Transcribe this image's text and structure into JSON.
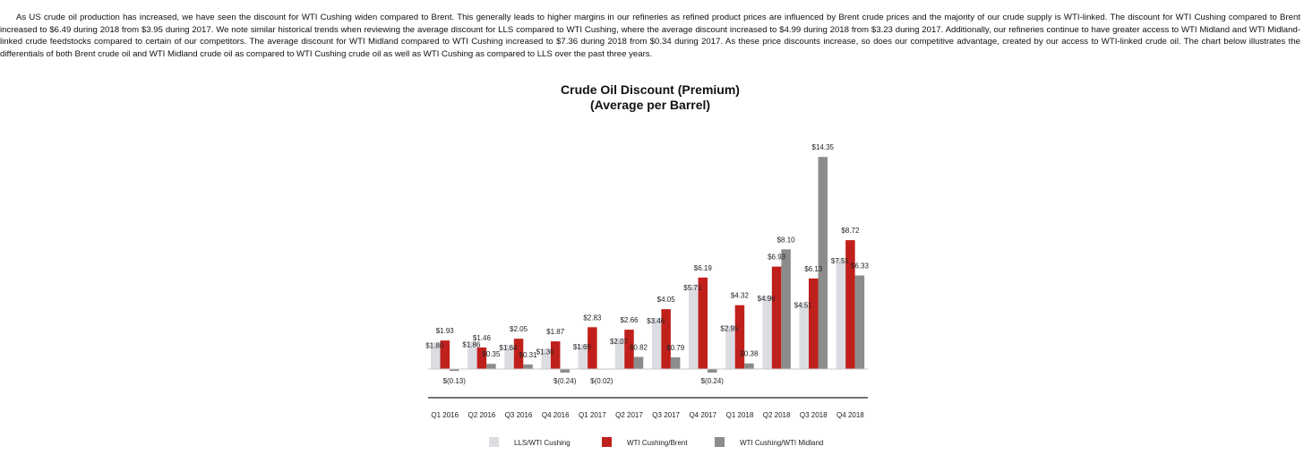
{
  "paragraph": "As US crude oil production has increased, we have seen the discount for WTI Cushing widen compared to Brent. This generally leads to higher margins in our refineries as refined product prices are influenced by Brent crude prices and the majority of our crude supply is WTI-linked. The discount for WTI Cushing compared to Brent increased to $6.49 during 2018 from $3.95 during 2017. We note similar historical trends when reviewing the average discount for LLS compared to WTI Cushing, where the average discount increased to $4.99 during 2018 from $3.23 during 2017. Additionally, our refineries continue to have greater access to WTI Midland and WTI Midland-linked crude feedstocks compared to certain of our competitors. The average discount for WTI Midland compared to WTI Cushing increased to $7.36 during 2018 from $0.34 during 2017. As these price discounts increase, so does our competitive advantage, created by our access to WTI-linked crude oil. The chart below illustrates the differentials of both Brent crude oil and WTI Midland crude oil as compared to WTI Cushing crude oil as well as WTI Cushing as compared to LLS over the past three years.",
  "chart_data": {
    "type": "bar",
    "title": "Crude Oil Discount (Premium)",
    "subtitle": "(Average per Barrel)",
    "categories": [
      "Q1 2016",
      "Q2 2016",
      "Q3 2016",
      "Q4 2016",
      "Q1 2017",
      "Q2 2017",
      "Q3 2017",
      "Q4 2017",
      "Q1 2018",
      "Q2 2018",
      "Q3 2018",
      "Q4 2018"
    ],
    "series": [
      {
        "name": "LLS/WTI Cushing",
        "color": "#dcdde2",
        "values": [
          1.8,
          1.86,
          1.64,
          1.36,
          1.69,
          2.07,
          3.46,
          5.71,
          2.95,
          4.96,
          4.51,
          7.51
        ],
        "labels": [
          "$1.80",
          "$1.86",
          "$1.64",
          "$1.36",
          "$1.69",
          "$2.07",
          "$3.46",
          "$5.71",
          "$2.95",
          "$4.96",
          "$4.51",
          "$7.51"
        ]
      },
      {
        "name": "WTI Cushing/Brent",
        "color": "#c0201c",
        "values": [
          1.93,
          1.46,
          2.05,
          1.87,
          2.83,
          2.66,
          4.05,
          6.19,
          4.32,
          6.93,
          6.13,
          8.72
        ],
        "labels": [
          "$1.93",
          "$1.46",
          "$2.05",
          "$1.87",
          "$2.83",
          "$2.66",
          "$4.05",
          "$6.19",
          "$4.32",
          "$6.93",
          "$6.13",
          "$8.72"
        ]
      },
      {
        "name": "WTI Cushing/WTI Midland",
        "color": "#8c8c8c",
        "values": [
          -0.13,
          0.35,
          0.31,
          -0.24,
          -0.02,
          0.82,
          0.79,
          -0.24,
          0.38,
          8.1,
          14.35,
          6.33
        ],
        "labels": [
          "$(0.13)",
          "$0.35",
          "$0.31",
          "$(0.24)",
          "$(0.02)",
          "$0.82",
          "$0.79",
          "$(0.24)",
          "$0.38",
          "$8.10",
          "$14.35",
          "$6.33"
        ]
      }
    ],
    "legend_position": "bottom",
    "grid": false
  }
}
